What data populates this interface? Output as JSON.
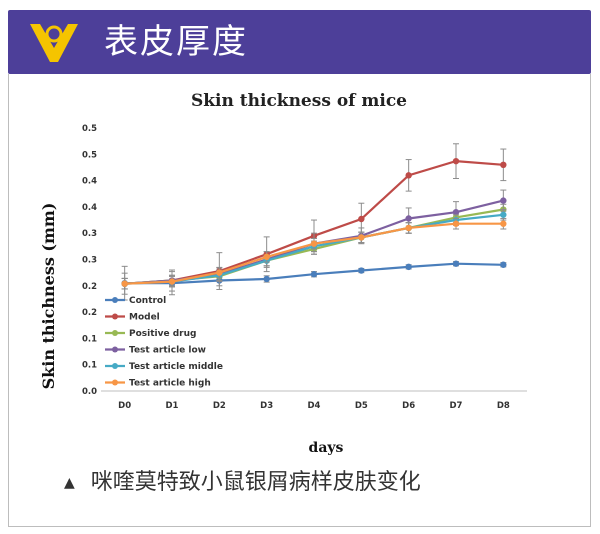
{
  "header": {
    "title": "表皮厚度",
    "brand_color": "#4d3f99",
    "logo_color": "#f5c400",
    "icon": "v-logo-icon"
  },
  "caption": {
    "marker": "▲",
    "text": "咪喹莫特致小鼠银屑病样皮肤变化"
  },
  "chart_data": {
    "type": "line",
    "title": "Skin thickness of mice",
    "xlabel": "days",
    "ylabel": "Skin thichness (mm)",
    "categories": [
      "D0",
      "D1",
      "D2",
      "D3",
      "D4",
      "D5",
      "D6",
      "D7",
      "D8"
    ],
    "ylim": [
      0.0,
      0.5
    ],
    "ytick_labels": [
      "0.0",
      "0.1",
      "0.1",
      "0.2",
      "0.2",
      "0.3",
      "0.3",
      "0.4",
      "0.4",
      "0.5",
      "0.5"
    ],
    "grid": false,
    "legend_position": "bottom-left",
    "series": [
      {
        "name": "Control",
        "color": "#4a7ebb",
        "values": [
          0.205,
          0.205,
          0.21,
          0.213,
          0.222,
          0.229,
          0.236,
          0.242,
          0.24
        ],
        "errors": [
          0.032,
          0.022,
          0.01,
          0.006,
          0.005,
          0.004,
          0.004,
          0.004,
          0.004
        ]
      },
      {
        "name": "Model",
        "color": "#be4b48",
        "values": [
          0.204,
          0.21,
          0.228,
          0.26,
          0.295,
          0.327,
          0.41,
          0.437,
          0.43
        ],
        "errors": [
          0.02,
          0.02,
          0.035,
          0.033,
          0.03,
          0.03,
          0.03,
          0.033,
          0.03
        ]
      },
      {
        "name": "Positive drug",
        "color": "#98b954",
        "values": [
          0.204,
          0.21,
          0.218,
          0.248,
          0.27,
          0.292,
          0.31,
          0.33,
          0.345
        ],
        "errors": [
          0.01,
          0.01,
          0.01,
          0.01,
          0.01,
          0.01,
          0.01,
          0.01,
          0.01
        ]
      },
      {
        "name": "Test article low",
        "color": "#7d60a0",
        "values": [
          0.204,
          0.21,
          0.222,
          0.25,
          0.28,
          0.295,
          0.328,
          0.34,
          0.362
        ],
        "errors": [
          0.01,
          0.01,
          0.012,
          0.015,
          0.02,
          0.015,
          0.02,
          0.02,
          0.02
        ]
      },
      {
        "name": "Test article middle",
        "color": "#46aac5",
        "values": [
          0.204,
          0.208,
          0.22,
          0.248,
          0.275,
          0.292,
          0.31,
          0.325,
          0.335
        ],
        "errors": [
          0.01,
          0.01,
          0.01,
          0.01,
          0.01,
          0.01,
          0.01,
          0.01,
          0.01
        ]
      },
      {
        "name": "Test article high",
        "color": "#f79646",
        "values": [
          0.204,
          0.208,
          0.225,
          0.255,
          0.28,
          0.292,
          0.31,
          0.318,
          0.318
        ],
        "errors": [
          0.01,
          0.01,
          0.01,
          0.01,
          0.01,
          0.01,
          0.01,
          0.01,
          0.01
        ]
      }
    ]
  }
}
